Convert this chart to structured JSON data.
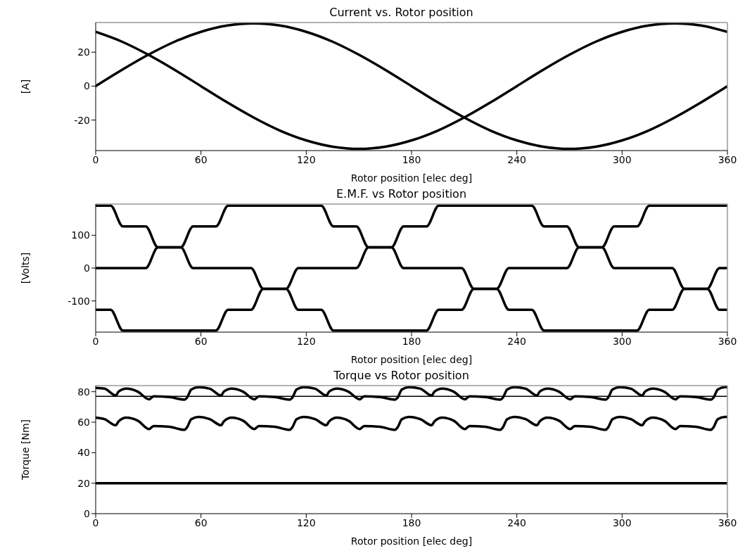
{
  "chart_data": [
    {
      "type": "line",
      "title": "Current vs. Rotor position",
      "xlabel": "Rotor position [elec deg]",
      "ylabel": "[A]",
      "xlim": [
        0,
        360
      ],
      "xticks": [
        0,
        60,
        120,
        180,
        240,
        300,
        360
      ],
      "ylim": [
        -38,
        37.5
      ],
      "yticks": [
        -20,
        0,
        20
      ],
      "series": [
        {
          "color": "#000000",
          "x": [
            0,
            15,
            30,
            45,
            60,
            75,
            90,
            105,
            120,
            135,
            150,
            165,
            180,
            195,
            210,
            225,
            240,
            255,
            270,
            285,
            300,
            315,
            330,
            345,
            360
          ],
          "values": [
            0,
            9.6,
            18.5,
            26.2,
            32,
            35.7,
            37,
            35.7,
            32,
            26.2,
            18.5,
            9.6,
            0,
            -9.6,
            -18.5,
            -26.2,
            -32,
            -35.7,
            -37,
            -35.7,
            -32,
            -26.2,
            -18.5,
            -9.6,
            0
          ]
        },
        {
          "color": "#000000",
          "x": [
            0,
            15,
            30,
            45,
            60,
            75,
            90,
            105,
            120,
            135,
            150,
            165,
            180,
            195,
            210,
            225,
            240,
            255,
            270,
            285,
            300,
            315,
            330,
            345,
            360
          ],
          "values": [
            32,
            26.2,
            18.5,
            9.6,
            0,
            -9.6,
            -18.5,
            -26.2,
            -32,
            -35.7,
            -37,
            -35.7,
            -32,
            -26.2,
            -18.5,
            -9.6,
            0,
            9.6,
            18.5,
            26.2,
            32,
            35.7,
            37,
            35.7,
            32
          ]
        }
      ]
    },
    {
      "type": "line",
      "title": "E.M.F. vs Rotor position",
      "xlabel": "Rotor position [elec deg]",
      "ylabel": "[Volts]",
      "xlim": [
        0,
        360
      ],
      "xticks": [
        0,
        60,
        120,
        180,
        240,
        300,
        360
      ],
      "ylim": [
        -195,
        195
      ],
      "yticks": [
        -100,
        0,
        100
      ],
      "series": [
        {
          "color": "#000000",
          "x": [
            0,
            8.5,
            15.5,
            28.5,
            35.5,
            48.5,
            55.5,
            88.5,
            95.5,
            108.5,
            115.5,
            128.5,
            135.5,
            188.5,
            195.5,
            208.5,
            215.5,
            228.5,
            235.5,
            268.5,
            275.5,
            288.5,
            295.5,
            308.5,
            315.5,
            360
          ],
          "values": [
            190,
            190,
            127,
            127,
            63,
            63,
            0,
            0,
            -63,
            -63,
            -127,
            -127,
            -190,
            -190,
            -127,
            -127,
            -63,
            -63,
            0,
            0,
            63,
            63,
            127,
            127,
            190,
            190
          ]
        },
        {
          "color": "#000000",
          "x": [
            0,
            28.5,
            35.5,
            48.5,
            55.5,
            68.5,
            75.5,
            128.5,
            135.5,
            148.5,
            155.5,
            168.5,
            175.5,
            208.5,
            215.5,
            228.5,
            235.5,
            248.5,
            255.5,
            308.5,
            315.5,
            328.5,
            335.5,
            348.5,
            355.5,
            360
          ],
          "values": [
            0,
            0,
            63,
            63,
            127,
            127,
            190,
            190,
            127,
            127,
            63,
            63,
            0,
            0,
            -63,
            -63,
            -127,
            -127,
            -190,
            -190,
            -127,
            -127,
            -63,
            -63,
            0,
            0
          ]
        },
        {
          "color": "#000000",
          "x": [
            0,
            8.5,
            15.5,
            68.5,
            75.5,
            88.5,
            95.5,
            108.5,
            115.5,
            148.5,
            155.5,
            168.5,
            175.5,
            188.5,
            195.5,
            248.5,
            255.5,
            268.5,
            275.5,
            288.5,
            295.5,
            328.5,
            335.5,
            348.5,
            355.5,
            360
          ],
          "values": [
            -127,
            -127,
            -190,
            -190,
            -127,
            -127,
            -63,
            -63,
            0,
            0,
            63,
            63,
            127,
            127,
            190,
            190,
            127,
            127,
            63,
            63,
            0,
            0,
            -63,
            -63,
            -127,
            -127
          ]
        }
      ]
    },
    {
      "type": "line",
      "title": "Torque vs Rotor position",
      "xlabel": "Rotor position [elec deg]",
      "ylabel": "Torque [Nm]",
      "xlim": [
        0,
        360
      ],
      "xticks": [
        0,
        60,
        120,
        180,
        240,
        300,
        360
      ],
      "ylim": [
        0,
        84
      ],
      "yticks": [
        0,
        20,
        40,
        60,
        80
      ],
      "ref_lines": [
        {
          "axis": "y",
          "value": 77,
          "color": "#000000"
        }
      ],
      "series": [
        {
          "color": "#000000",
          "x": [
            0,
            5,
            11.5,
            13,
            17.5,
            24,
            30.5,
            33,
            42,
            50.5,
            52,
            54.5,
            58.5,
            65,
            71.5,
            73,
            77.5,
            84,
            90.5,
            93,
            102,
            110.5,
            112,
            114.5,
            118.5,
            125,
            131.5,
            133,
            137.5,
            144,
            150.5,
            153,
            162,
            170.5,
            172,
            174.5,
            178.5,
            185,
            191.5,
            193,
            197.5,
            204,
            210.5,
            213,
            222,
            230.5,
            232,
            234.5,
            238.5,
            245,
            251.5,
            253,
            257.5,
            264,
            270.5,
            273,
            282,
            290.5,
            292,
            294.5,
            298.5,
            305,
            311.5,
            313,
            317.5,
            324,
            330.5,
            333,
            342,
            350.5,
            352,
            354.5,
            358.5,
            360
          ],
          "values": [
            82.5,
            82,
            77.5,
            80,
            82,
            80,
            75,
            77,
            76.5,
            74.8,
            76,
            81.5,
            83,
            82,
            77.5,
            80,
            82,
            80,
            75,
            77,
            76.5,
            74.8,
            76,
            81.5,
            83,
            82,
            77.5,
            80,
            82,
            80,
            75,
            77,
            76.5,
            74.8,
            76,
            81.5,
            83,
            82,
            77.5,
            80,
            82,
            80,
            75,
            77,
            76.5,
            74.8,
            76,
            81.5,
            83,
            82,
            77.5,
            80,
            82,
            80,
            75,
            77,
            76.5,
            74.8,
            76,
            81.5,
            83,
            82,
            77.5,
            80,
            82,
            80,
            75,
            77,
            76.5,
            74.8,
            76,
            81.5,
            83,
            83
          ]
        },
        {
          "color": "#000000",
          "x": [
            0,
            5,
            11.5,
            13,
            17.5,
            24,
            30.5,
            33,
            42,
            50.5,
            52,
            54.5,
            58.5,
            65,
            71.5,
            73,
            77.5,
            84,
            90.5,
            93,
            102,
            110.5,
            112,
            114.5,
            118.5,
            125,
            131.5,
            133,
            137.5,
            144,
            150.5,
            153,
            162,
            170.5,
            172,
            174.5,
            178.5,
            185,
            191.5,
            193,
            197.5,
            204,
            210.5,
            213,
            222,
            230.5,
            232,
            234.5,
            238.5,
            245,
            251.5,
            253,
            257.5,
            264,
            270.5,
            273,
            282,
            290.5,
            292,
            294.5,
            298.5,
            305,
            311.5,
            313,
            317.5,
            324,
            330.5,
            333,
            342,
            350.5,
            352,
            354.5,
            358.5,
            360
          ],
          "values": [
            63,
            62,
            58,
            60.5,
            63,
            61,
            55.5,
            57.5,
            57,
            55,
            56.5,
            62,
            63.5,
            62,
            58,
            60.5,
            63,
            61,
            55.5,
            57.5,
            57,
            55,
            56.5,
            62,
            63.5,
            62,
            58,
            60.5,
            63,
            61,
            55.5,
            57.5,
            57,
            55,
            56.5,
            62,
            63.5,
            62,
            58,
            60.5,
            63,
            61,
            55.5,
            57.5,
            57,
            55,
            56.5,
            62,
            63.5,
            62,
            58,
            60.5,
            63,
            61,
            55.5,
            57.5,
            57,
            55,
            56.5,
            62,
            63.5,
            62,
            58,
            60.5,
            63,
            61,
            55.5,
            57.5,
            57,
            55,
            56.5,
            62,
            63.5,
            63.5
          ]
        },
        {
          "color": "#000000",
          "x": [
            0,
            360
          ],
          "values": [
            20,
            20
          ]
        }
      ]
    }
  ]
}
